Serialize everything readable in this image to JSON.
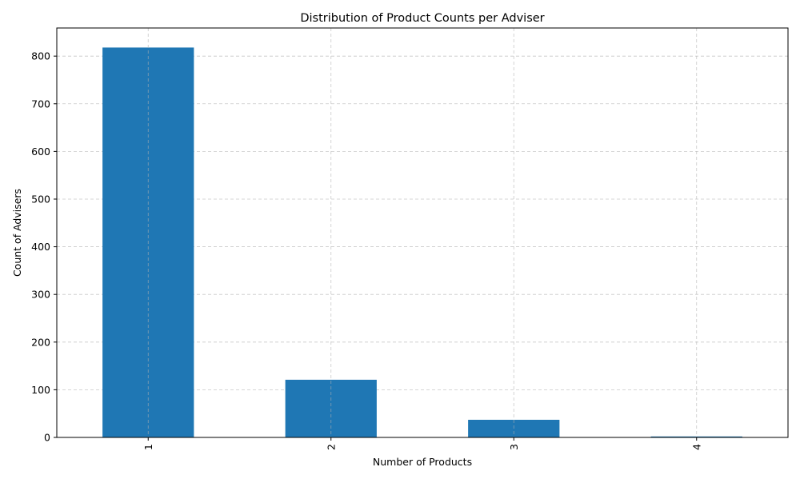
{
  "chart_data": {
    "type": "bar",
    "title": "Distribution of Product Counts per Adviser",
    "xlabel": "Number of Products",
    "ylabel": "Count of Advisers",
    "categories": [
      "1",
      "2",
      "3",
      "4"
    ],
    "values": [
      818,
      121,
      37,
      2
    ],
    "ylim": [
      0,
      859
    ],
    "yticks": [
      0,
      100,
      200,
      300,
      400,
      500,
      600,
      700,
      800
    ],
    "grid": true,
    "legend": "none",
    "bar_color": "#1f77b4",
    "grid_color": "#b0b0b0"
  }
}
